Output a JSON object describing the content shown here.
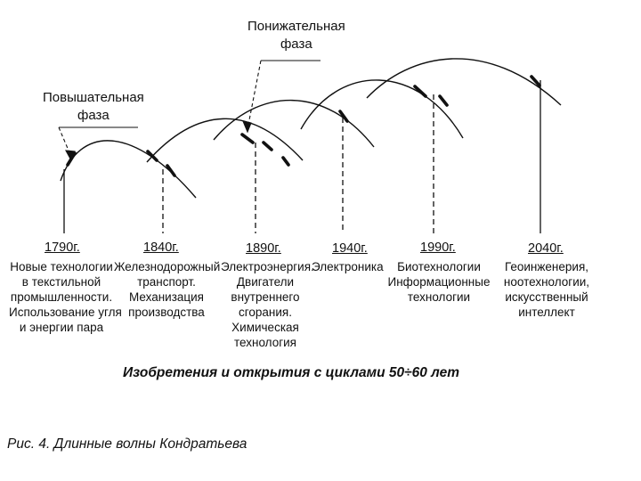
{
  "labels": {
    "downward_phase": [
      "Понижательная",
      "фаза"
    ],
    "upward_phase": [
      "Повышательная",
      "фаза"
    ]
  },
  "periods": [
    {
      "year": "1790г.",
      "lines": [
        "Новые технологии",
        "в текстильной",
        "промышленности.",
        "Использование угля",
        "и энергии пара"
      ]
    },
    {
      "year": "1840г.",
      "lines": [
        "Железнодорожный",
        "транспорт.",
        "Механизация",
        "производства"
      ]
    },
    {
      "year": "1890г.",
      "lines": [
        "Электроэнергия.",
        "Двигатели",
        "внутреннего",
        "сгорания.",
        "Химическая",
        "технология"
      ]
    },
    {
      "year": "1940г.",
      "lines": [
        "Электроника"
      ]
    },
    {
      "year": "1990г.",
      "lines": [
        "Биотехнологии",
        "Информационные",
        "технологии"
      ]
    },
    {
      "year": "2040г.",
      "lines": [
        "Геоинженерия,",
        "ноотехнологии,",
        "искусственный",
        "интеллект"
      ]
    }
  ],
  "axis_caption": "Изобретения и открытия с циклами 50÷60 лет",
  "figure_caption": "Рис. 4. Длинные волны Кондратьева",
  "colors": {
    "line": "#111111",
    "background": "#ffffff"
  }
}
